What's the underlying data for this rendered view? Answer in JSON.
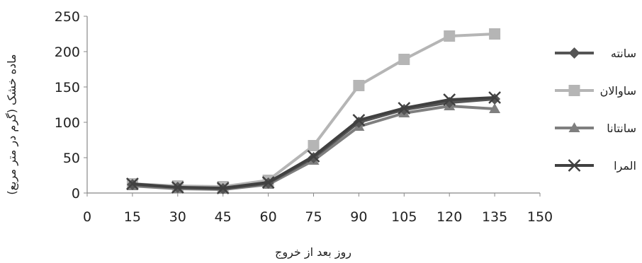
{
  "chart_data": {
    "type": "line",
    "title": "",
    "xlabel": "روز بعد از خروج",
    "ylabel": "ماده خشک (گرم در متر مربع)",
    "xlim": [
      0,
      150
    ],
    "ylim": [
      0,
      250
    ],
    "x_ticks": [
      "0",
      "15",
      "30",
      "45",
      "60",
      "75",
      "90",
      "105",
      "120",
      "135",
      "150"
    ],
    "y_ticks": [
      "0",
      "50",
      "100",
      "150",
      "200",
      "250"
    ],
    "grid": false,
    "legend_position": "right",
    "x": [
      15,
      30,
      45,
      60,
      75,
      90,
      105,
      120,
      135
    ],
    "series": [
      {
        "name": "سانته",
        "marker": "diamond",
        "color": "#555555",
        "values": [
          12,
          8,
          6,
          14,
          50,
          100,
          118,
          128,
          133
        ]
      },
      {
        "name": "ساوالان",
        "marker": "square",
        "color": "#b5b5b5",
        "values": [
          13,
          10,
          9,
          18,
          67,
          152,
          189,
          222,
          225
        ]
      },
      {
        "name": "سانتانا",
        "marker": "triangle",
        "color": "#7f7f7f",
        "values": [
          10,
          6,
          5,
          12,
          46,
          94,
          113,
          123,
          119
        ]
      },
      {
        "name": "المرا",
        "marker": "x",
        "color": "#404040",
        "values": [
          13,
          8,
          7,
          15,
          52,
          103,
          120,
          132,
          135
        ]
      }
    ]
  }
}
